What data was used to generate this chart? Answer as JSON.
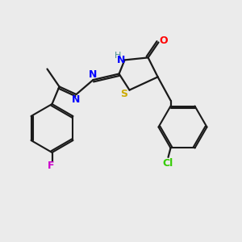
{
  "bg_color": "#ebebeb",
  "bond_color": "#1a1a1a",
  "colors": {
    "O": "#ff0000",
    "N": "#0000ff",
    "S": "#ccaa00",
    "H_label": "#4a9090",
    "Cl": "#33cc00",
    "F": "#cc00cc"
  },
  "figsize": [
    3.0,
    3.0
  ],
  "dpi": 100
}
